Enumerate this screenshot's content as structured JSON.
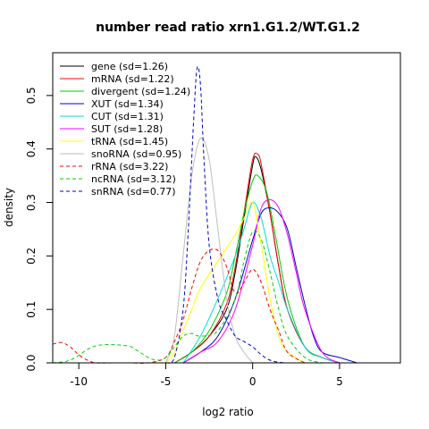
{
  "chart_data": {
    "type": "line",
    "title": "number read ratio xrn1.G1.2/WT.G1.2",
    "xlabel": "log2 ratio",
    "ylabel": "density",
    "xlim": [
      -11.5,
      8.5
    ],
    "ylim": [
      0,
      0.58
    ],
    "x_ticks": [
      -10,
      -5,
      0,
      5
    ],
    "y_ticks": [
      0.0,
      0.1,
      0.2,
      0.3,
      0.4,
      0.5
    ],
    "grid": false,
    "legend_position": "top-left",
    "series": [
      {
        "name": "gene (sd=1.26)",
        "color": "#000000",
        "dash": "solid",
        "x": [
          -4.5,
          -3.5,
          -2.5,
          -1.5,
          -1.0,
          -0.5,
          0,
          0.2,
          0.5,
          1.0,
          1.5,
          2.0,
          3.0,
          4.0,
          5.0
        ],
        "y": [
          0.0,
          0.02,
          0.05,
          0.1,
          0.17,
          0.27,
          0.37,
          0.385,
          0.36,
          0.28,
          0.18,
          0.1,
          0.03,
          0.01,
          0.0
        ]
      },
      {
        "name": "mRNA (sd=1.22)",
        "color": "#ff0000",
        "dash": "solid",
        "x": [
          -4.5,
          -3.5,
          -2.5,
          -1.5,
          -1.0,
          -0.5,
          0,
          0.3,
          0.5,
          1.0,
          1.5,
          2.0,
          3.0,
          4.0,
          5.0
        ],
        "y": [
          0.0,
          0.02,
          0.05,
          0.11,
          0.18,
          0.28,
          0.38,
          0.39,
          0.37,
          0.28,
          0.18,
          0.1,
          0.03,
          0.01,
          0.0
        ]
      },
      {
        "name": "divergent (sd=1.24)",
        "color": "#00cc00",
        "dash": "solid",
        "x": [
          -4.5,
          -3.5,
          -2.5,
          -1.5,
          -1.0,
          -0.5,
          0,
          0.3,
          0.8,
          1.3,
          2.0,
          3.0,
          4.0,
          5.0
        ],
        "y": [
          0.0,
          0.02,
          0.06,
          0.13,
          0.2,
          0.28,
          0.34,
          0.35,
          0.32,
          0.24,
          0.12,
          0.03,
          0.01,
          0.0
        ]
      },
      {
        "name": "XUT (sd=1.34)",
        "color": "#0000cc",
        "dash": "solid",
        "x": [
          -4.0,
          -3.0,
          -2.0,
          -1.0,
          0,
          0.5,
          1.0,
          1.5,
          2.0,
          2.5,
          3.0,
          3.5,
          4.0,
          5.0,
          6.0
        ],
        "y": [
          0.0,
          0.02,
          0.05,
          0.12,
          0.23,
          0.28,
          0.29,
          0.28,
          0.25,
          0.18,
          0.11,
          0.05,
          0.02,
          0.01,
          0.0
        ]
      },
      {
        "name": "CUT (sd=1.31)",
        "color": "#00dddd",
        "dash": "solid",
        "x": [
          -4.0,
          -3.0,
          -2.0,
          -1.0,
          -0.5,
          0,
          0.5,
          1.0,
          1.5,
          2.0,
          3.0,
          4.0,
          5.0
        ],
        "y": [
          0.0,
          0.05,
          0.12,
          0.2,
          0.25,
          0.3,
          0.27,
          0.2,
          0.15,
          0.1,
          0.03,
          0.01,
          0.0
        ]
      },
      {
        "name": "SUT (sd=1.28)",
        "color": "#ff00ff",
        "dash": "solid",
        "x": [
          -4.0,
          -3.0,
          -2.0,
          -1.0,
          0,
          0.5,
          1.0,
          1.5,
          2.0,
          2.5,
          3.0,
          4.0,
          5.0
        ],
        "y": [
          0.0,
          0.02,
          0.04,
          0.1,
          0.22,
          0.29,
          0.305,
          0.29,
          0.24,
          0.17,
          0.1,
          0.02,
          0.0
        ]
      },
      {
        "name": "tRNA (sd=1.45)",
        "color": "#ffff00",
        "dash": "solid",
        "x": [
          -5.0,
          -4.5,
          -4.0,
          -3.5,
          -3.0,
          -2.0,
          -1.0,
          -0.5,
          0,
          0.5,
          1.0,
          1.5,
          2.0,
          3.0
        ],
        "y": [
          0.0,
          0.02,
          0.06,
          0.1,
          0.14,
          0.19,
          0.24,
          0.27,
          0.3,
          0.22,
          0.12,
          0.05,
          0.02,
          0.0
        ]
      },
      {
        "name": "snoRNA (sd=0.95)",
        "color": "#bebebe",
        "dash": "solid",
        "x": [
          -5.0,
          -4.5,
          -4.0,
          -3.5,
          -3.0,
          -2.5,
          -2.0,
          -1.5,
          -1.0,
          -0.5,
          0
        ],
        "y": [
          0.0,
          0.05,
          0.2,
          0.35,
          0.42,
          0.38,
          0.25,
          0.12,
          0.05,
          0.02,
          0.0
        ]
      },
      {
        "name": "rRNA (sd=3.22)",
        "color": "#ff0000",
        "dash": "dashed",
        "x": [
          -11.5,
          -11.0,
          -10.5,
          -10.0,
          -9.5,
          -9.0,
          -8.0,
          -7.0,
          -6.0,
          -5.0,
          -4.5,
          -4.0,
          -3.5,
          -3.0,
          -2.5,
          -2.0,
          -1.5,
          -1.0,
          -0.5,
          0,
          0.5,
          1.0,
          1.5,
          2.0,
          3.0
        ],
        "y": [
          0.035,
          0.038,
          0.03,
          0.015,
          0.005,
          0.0,
          0.0,
          0.0,
          0.0,
          0.01,
          0.04,
          0.08,
          0.14,
          0.19,
          0.21,
          0.21,
          0.18,
          0.13,
          0.15,
          0.175,
          0.15,
          0.1,
          0.06,
          0.02,
          0.0
        ]
      },
      {
        "name": "ncRNA (sd=3.12)",
        "color": "#00cc00",
        "dash": "dashed",
        "x": [
          -11.5,
          -10.5,
          -9.5,
          -9.0,
          -8.5,
          -8.0,
          -7.5,
          -7.0,
          -6.5,
          -6.0,
          -5.5,
          -5.0,
          -4.5,
          -4.0,
          -3.5,
          -3.0,
          -2.0,
          -1.0,
          -0.5,
          0,
          0.5,
          1.0,
          1.5,
          2.0,
          3.0,
          4.0
        ],
        "y": [
          0.0,
          0.005,
          0.025,
          0.032,
          0.034,
          0.034,
          0.033,
          0.03,
          0.02,
          0.01,
          0.005,
          0.01,
          0.03,
          0.05,
          0.055,
          0.05,
          0.06,
          0.12,
          0.19,
          0.245,
          0.23,
          0.17,
          0.1,
          0.05,
          0.01,
          0.0
        ]
      },
      {
        "name": "snRNA (sd=0.77)",
        "color": "#0000cc",
        "dash": "dashed",
        "x": [
          -5.0,
          -4.5,
          -4.0,
          -3.7,
          -3.4,
          -3.2,
          -3.0,
          -2.8,
          -2.5,
          -2.0,
          -1.5,
          -1.0,
          -0.5,
          0,
          0.5,
          1.0,
          1.5,
          2.0
        ],
        "y": [
          0.0,
          0.01,
          0.1,
          0.25,
          0.45,
          0.55,
          0.52,
          0.38,
          0.22,
          0.12,
          0.08,
          0.05,
          0.04,
          0.03,
          0.015,
          0.005,
          0.001,
          0.0
        ]
      }
    ]
  }
}
